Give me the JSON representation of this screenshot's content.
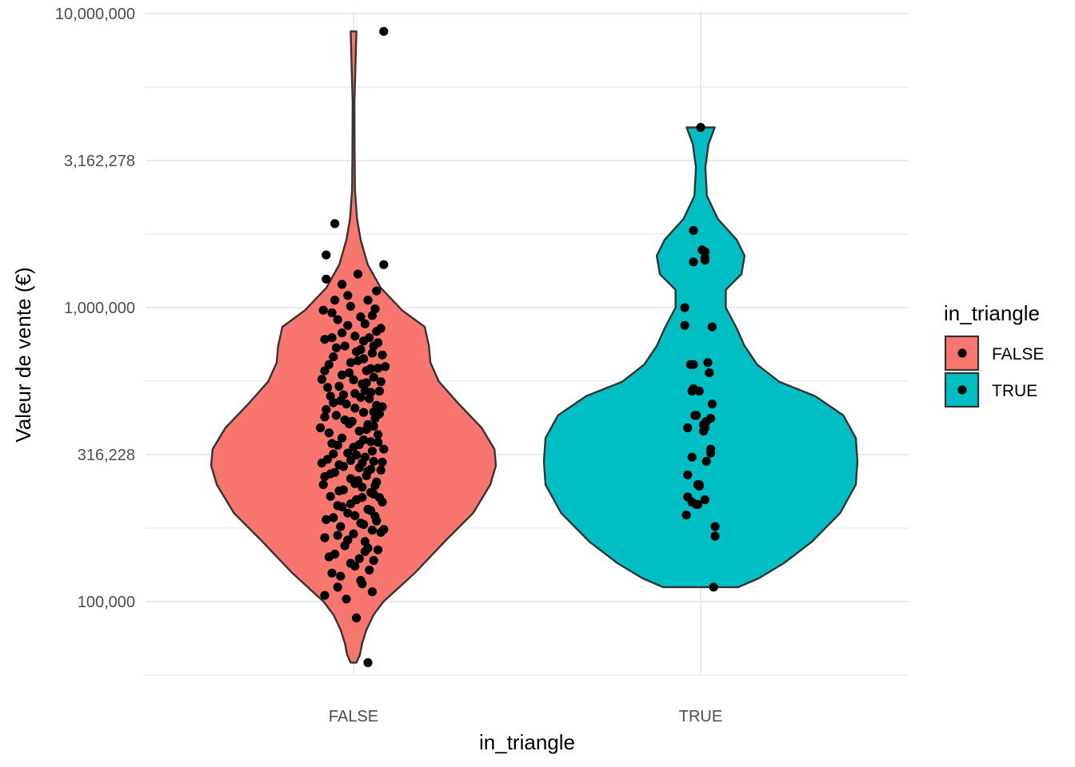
{
  "chart_data": {
    "type": "violin",
    "xlabel": "in_triangle",
    "ylabel": "Valeur de vente (€)",
    "y_scale": "log10",
    "ylim": [
      55000,
      10000000
    ],
    "y_ticks": [
      100000,
      316228,
      1000000,
      3162278,
      10000000
    ],
    "y_tick_labels": [
      "100,000",
      "316,228",
      "1,000,000",
      "3,162,278",
      "10,000,000"
    ],
    "categories": [
      "FALSE",
      "TRUE"
    ],
    "colors": {
      "FALSE": "#F8766D",
      "TRUE": "#00BFC4"
    },
    "grid": true,
    "legend": {
      "title": "in_triangle",
      "position": "right",
      "entries": [
        {
          "label": "FALSE",
          "color": "#F8766D"
        },
        {
          "label": "TRUE",
          "color": "#00BFC4"
        }
      ]
    },
    "violins": [
      {
        "name": "FALSE",
        "y_min": 62000,
        "y_max": 8700000,
        "profile": [
          [
            62000,
            0.02
          ],
          [
            66000,
            0.045
          ],
          [
            72000,
            0.06
          ],
          [
            80000,
            0.09
          ],
          [
            90000,
            0.14
          ],
          [
            100000,
            0.21
          ],
          [
            125000,
            0.43
          ],
          [
            160000,
            0.64
          ],
          [
            200000,
            0.84
          ],
          [
            250000,
            0.96
          ],
          [
            290000,
            1.0
          ],
          [
            330000,
            0.99
          ],
          [
            390000,
            0.9
          ],
          [
            470000,
            0.74
          ],
          [
            560000,
            0.6
          ],
          [
            650000,
            0.54
          ],
          [
            740000,
            0.53
          ],
          [
            860000,
            0.5
          ],
          [
            980000,
            0.34
          ],
          [
            1170000,
            0.19
          ],
          [
            1400000,
            0.1
          ],
          [
            1700000,
            0.05
          ],
          [
            2000000,
            0.025
          ],
          [
            2500000,
            0.01
          ],
          [
            3200000,
            0.008
          ],
          [
            5000000,
            0.006
          ],
          [
            8700000,
            0.02
          ]
        ],
        "points": [
          [
            8700000,
            0.21
          ],
          [
            1930000,
            -0.13
          ],
          [
            1510000,
            -0.19
          ],
          [
            1400000,
            0.21
          ],
          [
            1300000,
            0.03
          ],
          [
            1250000,
            -0.19
          ],
          [
            1200000,
            -0.08
          ],
          [
            1140000,
            0.16
          ],
          [
            1100000,
            -0.04
          ],
          [
            1060000,
            0.1
          ],
          [
            1010000,
            -0.02
          ],
          [
            980000,
            -0.21
          ],
          [
            960000,
            -0.15
          ],
          [
            940000,
            0.13
          ],
          [
            910000,
            -0.11
          ],
          [
            880000,
            0.08
          ],
          [
            850000,
            0.19
          ],
          [
            820000,
            -0.08
          ],
          [
            800000,
            0.01
          ],
          [
            790000,
            0.11
          ],
          [
            780000,
            -0.2
          ],
          [
            760000,
            0.17
          ],
          [
            740000,
            -0.06
          ],
          [
            720000,
            0.05
          ],
          [
            700000,
            0.13
          ],
          [
            680000,
            -0.14
          ],
          [
            660000,
            0.03
          ],
          [
            640000,
            -0.17
          ],
          [
            630000,
            0.22
          ],
          [
            610000,
            0.09
          ],
          [
            600000,
            -0.03
          ],
          [
            580000,
            0.14
          ],
          [
            570000,
            -0.22
          ],
          [
            550000,
            0.06
          ],
          [
            540000,
            -0.1
          ],
          [
            520000,
            0.18
          ],
          [
            510000,
            0.01
          ],
          [
            500000,
            -0.16
          ],
          [
            490000,
            0.11
          ],
          [
            470000,
            -0.05
          ],
          [
            460000,
            0.2
          ],
          [
            450000,
            -0.19
          ],
          [
            440000,
            0.07
          ],
          [
            430000,
            -0.12
          ],
          [
            420000,
            0.15
          ],
          [
            410000,
            -0.01
          ],
          [
            400000,
            0.1
          ],
          [
            390000,
            -0.23
          ],
          [
            380000,
            0.04
          ],
          [
            370000,
            0.17
          ],
          [
            360000,
            -0.08
          ],
          [
            350000,
            0.12
          ],
          [
            345000,
            -0.15
          ],
          [
            335000,
            0.0
          ],
          [
            330000,
            0.21
          ],
          [
            320000,
            -0.04
          ],
          [
            310000,
            0.08
          ],
          [
            305000,
            -0.18
          ],
          [
            300000,
            0.14
          ],
          [
            292000,
            -0.1
          ],
          [
            285000,
            0.04
          ],
          [
            280000,
            0.19
          ],
          [
            275000,
            -0.13
          ],
          [
            268000,
            0.09
          ],
          [
            262000,
            -0.02
          ],
          [
            255000,
            0.16
          ],
          [
            250000,
            -0.21
          ],
          [
            245000,
            0.06
          ],
          [
            240000,
            -0.07
          ],
          [
            235000,
            0.12
          ],
          [
            228000,
            -0.16
          ],
          [
            222000,
            0.02
          ],
          [
            218000,
            0.2
          ],
          [
            212000,
            -0.11
          ],
          [
            206000,
            0.1
          ],
          [
            200000,
            -0.04
          ],
          [
            195000,
            0.15
          ],
          [
            190000,
            -0.19
          ],
          [
            185000,
            0.05
          ],
          [
            180000,
            -0.09
          ],
          [
            175000,
            0.13
          ],
          [
            170000,
            0.0
          ],
          [
            165000,
            -0.2
          ],
          [
            160000,
            0.08
          ],
          [
            155000,
            -0.06
          ],
          [
            150000,
            0.17
          ],
          [
            145000,
            -0.13
          ],
          [
            140000,
            0.04
          ],
          [
            135000,
            -0.02
          ],
          [
            128000,
            0.11
          ],
          [
            122000,
            -0.09
          ],
          [
            115000,
            0.06
          ],
          [
            108000,
            0.13
          ],
          [
            105000,
            -0.2
          ],
          [
            102000,
            -0.05
          ],
          [
            88000,
            0.02
          ],
          [
            62000,
            0.1
          ],
          [
            1060000,
            -0.13
          ],
          [
            990000,
            0.15
          ],
          [
            930000,
            0.05
          ],
          [
            870000,
            -0.04
          ],
          [
            830000,
            0.16
          ],
          [
            770000,
            0.07
          ],
          [
            730000,
            -0.12
          ],
          [
            690000,
            0.2
          ],
          [
            650000,
            -0.02
          ],
          [
            620000,
            0.12
          ],
          [
            590000,
            -0.08
          ],
          [
            560000,
            0.19
          ],
          [
            535000,
            -0.18
          ],
          [
            515000,
            0.12
          ],
          [
            495000,
            0.05
          ],
          [
            475000,
            -0.14
          ],
          [
            455000,
            0.01
          ],
          [
            435000,
            0.18
          ],
          [
            415000,
            -0.06
          ],
          [
            395000,
            0.14
          ],
          [
            375000,
            -0.17
          ],
          [
            355000,
            0.07
          ],
          [
            340000,
            -0.11
          ],
          [
            325000,
            0.13
          ],
          [
            315000,
            0.02
          ],
          [
            298000,
            0.2
          ],
          [
            288000,
            -0.07
          ],
          [
            278000,
            0.1
          ],
          [
            266000,
            -0.2
          ],
          [
            258000,
            0.03
          ],
          [
            248000,
            0.15
          ],
          [
            238000,
            -0.1
          ],
          [
            226000,
            0.18
          ],
          [
            215000,
            -0.02
          ],
          [
            204000,
            0.12
          ],
          [
            193000,
            -0.14
          ],
          [
            183000,
            0.07
          ],
          [
            172000,
            0.19
          ],
          [
            162000,
            -0.04
          ],
          [
            152000,
            0.1
          ],
          [
            142000,
            -0.17
          ],
          [
            132000,
            0.01
          ],
          [
            118000,
            0.05
          ],
          [
            112000,
            -0.11
          ],
          [
            790000,
            -0.15
          ],
          [
            740000,
            0.14
          ],
          [
            670000,
            0.07
          ],
          [
            610000,
            -0.2
          ],
          [
            555000,
            0.09
          ],
          [
            505000,
            -0.07
          ],
          [
            465000,
            0.16
          ],
          [
            425000,
            -0.2
          ],
          [
            385000,
            0.09
          ],
          [
            348000,
            0.17
          ],
          [
            318000,
            -0.14
          ],
          [
            296000,
            0.06
          ],
          [
            272000,
            -0.16
          ],
          [
            252000,
            0.01
          ],
          [
            232000,
            0.14
          ],
          [
            210000,
            -0.08
          ],
          [
            188000,
            0.16
          ],
          [
            168000,
            -0.11
          ],
          [
            148000,
            0.08
          ],
          [
            125000,
            -0.15
          ],
          [
            282000,
            0.12
          ],
          [
            302000,
            -0.02
          ],
          [
            342000,
            0.04
          ],
          [
            402000,
            -0.03
          ],
          [
            442000,
            0.14
          ],
          [
            482000,
            -0.09
          ],
          [
            522000,
            0.08
          ],
          [
            568000,
            0.0
          ],
          [
            622000,
            0.17
          ],
          [
            708000,
            0.02
          ],
          [
            296000,
            -0.22
          ],
          [
            226000,
            0.06
          ],
          [
            196000,
            0.01
          ],
          [
            176000,
            0.21
          ],
          [
            138000,
            0.14
          ]
        ]
      },
      {
        "name": "TRUE",
        "y_min": 112000,
        "y_max": 4100000,
        "profile": [
          [
            112000,
            0.24
          ],
          [
            120000,
            0.37
          ],
          [
            135000,
            0.53
          ],
          [
            160000,
            0.71
          ],
          [
            200000,
            0.89
          ],
          [
            250000,
            0.99
          ],
          [
            300000,
            1.0
          ],
          [
            360000,
            0.99
          ],
          [
            430000,
            0.91
          ],
          [
            500000,
            0.73
          ],
          [
            560000,
            0.5
          ],
          [
            640000,
            0.36
          ],
          [
            740000,
            0.28
          ],
          [
            850000,
            0.23
          ],
          [
            1000000,
            0.16
          ],
          [
            1150000,
            0.16
          ],
          [
            1300000,
            0.26
          ],
          [
            1500000,
            0.28
          ],
          [
            1700000,
            0.23
          ],
          [
            2000000,
            0.11
          ],
          [
            2400000,
            0.04
          ],
          [
            3000000,
            0.03
          ],
          [
            3600000,
            0.05
          ],
          [
            4100000,
            0.09
          ]
        ],
        "points": [
          [
            4100000,
            0.0
          ],
          [
            1830000,
            -0.05
          ],
          [
            1570000,
            0.01
          ],
          [
            1550000,
            0.03
          ],
          [
            1480000,
            0.03
          ],
          [
            1430000,
            -0.05
          ],
          [
            1450000,
            0.03
          ],
          [
            1000000,
            -0.11
          ],
          [
            870000,
            -0.11
          ],
          [
            860000,
            0.08
          ],
          [
            640000,
            -0.05
          ],
          [
            640000,
            -0.07
          ],
          [
            650000,
            0.05
          ],
          [
            600000,
            0.06
          ],
          [
            530000,
            -0.05
          ],
          [
            520000,
            -0.06
          ],
          [
            520000,
            -0.01
          ],
          [
            470000,
            0.08
          ],
          [
            430000,
            -0.03
          ],
          [
            430000,
            -0.04
          ],
          [
            420000,
            0.07
          ],
          [
            410000,
            0.04
          ],
          [
            400000,
            0.02
          ],
          [
            390000,
            -0.09
          ],
          [
            390000,
            0.03
          ],
          [
            380000,
            0.02
          ],
          [
            330000,
            0.07
          ],
          [
            320000,
            0.07
          ],
          [
            310000,
            -0.06
          ],
          [
            300000,
            0.04
          ],
          [
            270000,
            -0.09
          ],
          [
            250000,
            -0.02
          ],
          [
            250000,
            -0.01
          ],
          [
            247000,
            -0.01
          ],
          [
            227000,
            -0.09
          ],
          [
            222000,
            0.03
          ],
          [
            218000,
            -0.06
          ],
          [
            214000,
            -0.03
          ],
          [
            214000,
            -0.02
          ],
          [
            197000,
            -0.1
          ],
          [
            180000,
            0.1
          ],
          [
            167000,
            0.1
          ],
          [
            112000,
            0.09
          ]
        ]
      }
    ]
  }
}
